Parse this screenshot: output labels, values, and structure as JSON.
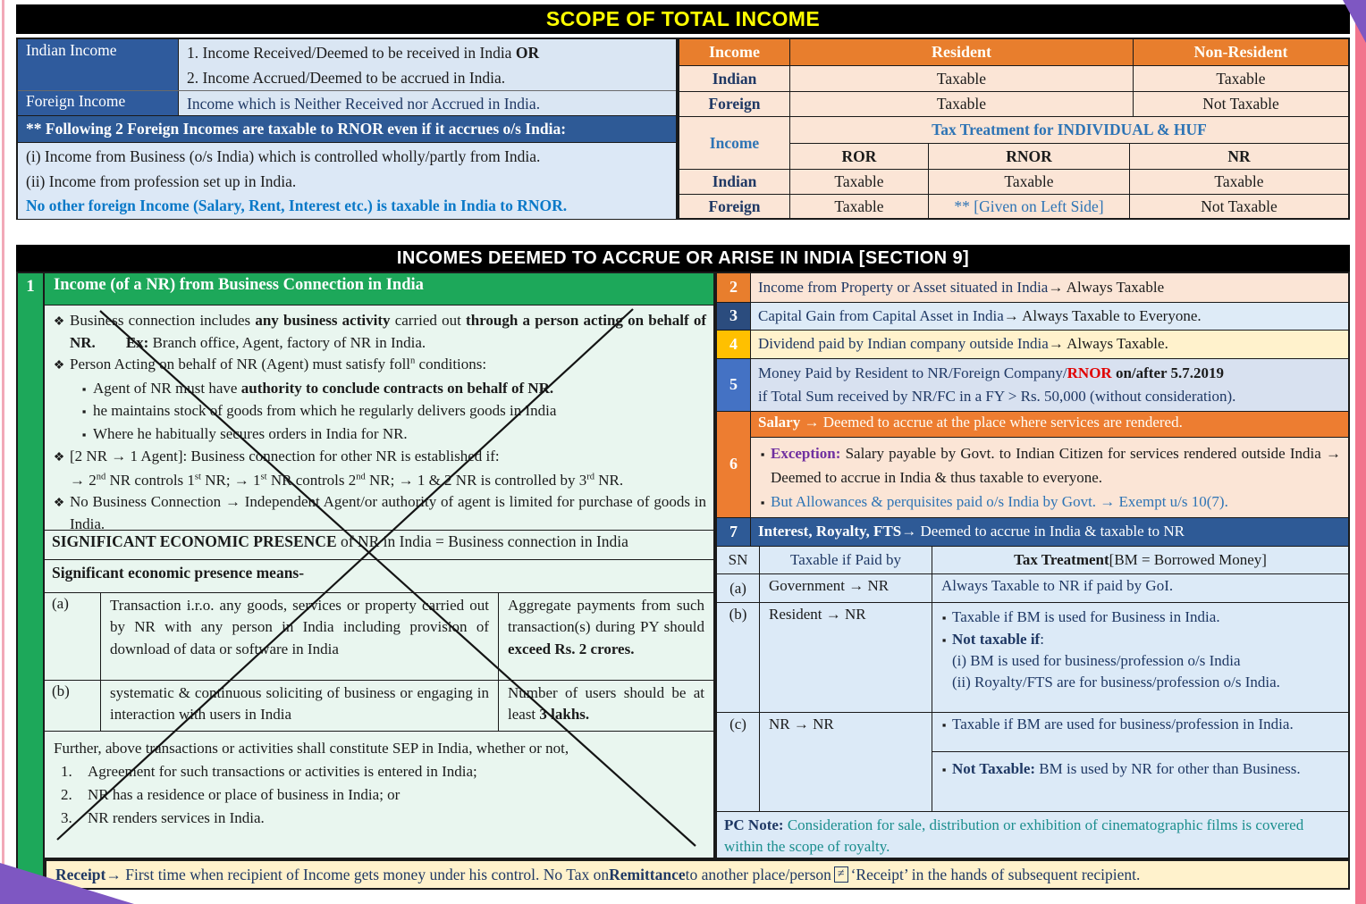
{
  "top": {
    "title": "SCOPE OF TOTAL INCOME",
    "left": {
      "indian_label": "Indian Income",
      "indian_line1": [
        {
          "t": "1. Income Received/Deemed to be received in India "
        },
        {
          "t": "OR",
          "c": "b"
        }
      ],
      "indian_line2": [
        {
          "t": "2. Income Accrued/Deemed to be accrued in India."
        }
      ],
      "foreign_label": "Foreign Income",
      "foreign_desc": [
        {
          "t": "Income which is Neither Received nor Accrued in India.",
          "c": "navy"
        }
      ],
      "note": "** Following 2 Foreign Incomes are taxable to RNOR even if it accrues o/s India:",
      "item1": "(i) Income from Business (o/s India) which is controlled wholly/partly from India.",
      "item2": "(ii) Income from profession set up in India.",
      "highlight": "No other foreign Income (Salary, Rent, Interest etc.) is taxable in India to RNOR."
    },
    "right": {
      "h_income": "Income",
      "h_resident": "Resident",
      "h_nonresident": "Non-Resident",
      "r1": {
        "label": "Indian",
        "res": "Taxable",
        "nr": "Taxable"
      },
      "r2": {
        "label": "Foreign",
        "res": "Taxable",
        "nr": "Not Taxable"
      },
      "income2": "Income",
      "treat_hdr": "Tax Treatment for INDIVIDUAL & HUF",
      "sub": {
        "ror": "ROR",
        "rnor": "RNOR",
        "nr": "NR"
      },
      "r3": {
        "label": "Indian",
        "ror": "Taxable",
        "rnor": "Taxable",
        "nr": "Taxable"
      },
      "r4": {
        "label": "Foreign",
        "ror": "Taxable",
        "rnor": "** [Given on Left Side]",
        "nr": "Not Taxable"
      }
    }
  },
  "sec9": {
    "title": "INCOMES DEEMED TO ACCRUE OR ARISE IN INDIA [SECTION 9]",
    "n1": "1",
    "t1": "Income (of a NR) from Business Connection in India",
    "b1": [
      {
        "t": "Business connection includes "
      },
      {
        "t": "any business activity",
        "c": "b"
      },
      {
        "t": " carried out "
      },
      {
        "t": "through a person acting on behalf of NR.",
        "c": "b"
      },
      {
        "t": "        "
      },
      {
        "t": "Ex:",
        "c": "b"
      },
      {
        "t": " Branch office, Agent, factory of NR in India."
      }
    ],
    "b2": [
      {
        "t": "Person Acting on behalf of NR (Agent) must satisfy foll"
      },
      {
        "t": "n",
        "c": "sup"
      },
      {
        "t": " conditions:"
      }
    ],
    "s1": [
      {
        "t": "Agent of NR must have "
      },
      {
        "t": "authority to conclude contracts on behalf of NR.",
        "c": "b"
      }
    ],
    "s2": [
      {
        "t": "he maintains stock of goods from which he regularly delivers goods in India"
      }
    ],
    "s3": [
      {
        "t": "Where he habitually secures orders in India for NR."
      }
    ],
    "b3a": [
      {
        "t": "[2 NR → 1 Agent]: Business connection for other NR is established if:"
      }
    ],
    "b3b": [
      {
        "t": "→ 2"
      },
      {
        "t": "nd",
        "c": "sup"
      },
      {
        "t": " NR controls 1"
      },
      {
        "t": "st",
        "c": "sup"
      },
      {
        "t": " NR; → 1"
      },
      {
        "t": "st",
        "c": "sup"
      },
      {
        "t": " NR controls 2"
      },
      {
        "t": "nd",
        "c": "sup"
      },
      {
        "t": " NR; → 1 & 2 NR is controlled by 3"
      },
      {
        "t": "rd",
        "c": "sup"
      },
      {
        "t": " NR."
      }
    ],
    "b4": [
      {
        "t": "No Business Connection → Independent Agent/or authority of agent is limited for purchase of goods in India."
      }
    ],
    "sep": [
      {
        "t": "SIGNIFICANT ECONOMIC PRESENCE",
        "c": "b"
      },
      {
        "t": " of NR in India = Business connection in India"
      }
    ],
    "means": [
      {
        "t": "Significant economic presence means-",
        "c": "b"
      }
    ],
    "ga": {
      "label": "(a)",
      "desc": [
        {
          "t": "Transaction i.r.o. any goods, services or property carried out by NR with any person in India including provision of download of data or software in India"
        }
      ],
      "val": [
        {
          "t": "Aggregate payments from such transaction(s) during PY should "
        },
        {
          "t": "exceed Rs. 2 crores.",
          "c": "b"
        }
      ]
    },
    "gb": {
      "label": "(b)",
      "desc": [
        {
          "t": "systematic & continuous soliciting of business or engaging in interaction with users in India"
        }
      ],
      "val": [
        {
          "t": "Number of users should be at least "
        },
        {
          "t": "3 lakhs.",
          "c": "b"
        }
      ]
    },
    "footer": {
      "p": "Further, above transactions or activities shall constitute SEP in India, whether or not,",
      "items": [
        {
          "n": "1.",
          "t": "Agreement for such transactions or activities is entered in India;"
        },
        {
          "n": "2.",
          "t": "NR has a residence or place of business in India; or"
        },
        {
          "n": "3.",
          "t": "NR renders services in India."
        }
      ]
    },
    "r2": {
      "n": "2",
      "segs": [
        {
          "t": "Income from Property or Asset situated in India ",
          "c": "navy"
        },
        {
          "t": "→ Always Taxable"
        }
      ]
    },
    "r3": {
      "n": "3",
      "segs": [
        {
          "t": "Capital Gain from Capital Asset in India ",
          "c": "navy"
        },
        {
          "t": "→ Always Taxable to Everyone."
        }
      ]
    },
    "r4": {
      "n": "4",
      "segs": [
        {
          "t": "Dividend paid by Indian company outside India ",
          "c": "navy"
        },
        {
          "t": "→ Always Taxable."
        }
      ]
    },
    "r5": {
      "n": "5",
      "l1": [
        {
          "t": "Money Paid by Resident to NR/Foreign Company/",
          "c": "navy"
        },
        {
          "t": "RNOR",
          "c": "red"
        },
        {
          "t": " on/after 5.7.2019",
          "c": "b"
        }
      ],
      "l2": [
        {
          "t": "if Total Sum received by NR/FC in a FY > Rs. 50,000 (without consideration).",
          "c": "navy"
        }
      ]
    },
    "r6": {
      "n": "6",
      "hdr": [
        {
          "t": "Salary",
          "c": "b"
        },
        {
          "t": " → Deemed to accrue at the place where services are rendered."
        }
      ],
      "b1": [
        {
          "t": "Exception:",
          "c": "purple"
        },
        {
          "t": " Salary payable by Govt. to Indian Citizen for services rendered outside India → Deemed to accrue in India & thus taxable to everyone."
        }
      ],
      "b2": [
        {
          "t": "But Allowances & perquisites paid o/s India by Govt. → Exempt u/s 10(7).",
          "c": "blue"
        }
      ]
    },
    "r7": {
      "n": "7",
      "segs": [
        {
          "t": "Interest, Royalty, FTS",
          "c": "b"
        },
        {
          "t": " → Deemed to accrue in India & taxable to NR"
        }
      ]
    },
    "sn": {
      "h_sn": "SN",
      "h_paid": [
        {
          "t": "Taxable if Paid by",
          "c": "navy"
        }
      ],
      "h_treat": [
        {
          "t": "Tax Treatment",
          "c": "b"
        },
        {
          "t": " [BM = Borrowed Money]"
        }
      ],
      "a": {
        "label": "(a)",
        "paid": "Government → NR",
        "treat": [
          {
            "t": "Always Taxable to NR if paid by GoI.",
            "c": "navy"
          }
        ]
      },
      "b": {
        "label": "(b)",
        "paid": "Resident → NR",
        "t1": [
          {
            "t": "Taxable if BM is used for Business in India.",
            "c": "navy"
          }
        ],
        "t2": [
          {
            "t": "Not taxable if",
            "c": "navy b"
          },
          {
            "t": ":",
            "c": "navy"
          }
        ],
        "t2i": [
          {
            "t": "(i) BM is used for business/profession o/s India",
            "c": "navy"
          }
        ],
        "t2ii": [
          {
            "t": "(ii) Royalty/FTS are for business/profession o/s India.",
            "c": "navy"
          }
        ]
      },
      "c": {
        "label": "(c)",
        "paid": "NR → NR",
        "t1": [
          {
            "t": "Taxable if BM are used for business/profession in India.",
            "c": "navy"
          }
        ],
        "t2": [
          {
            "t": "Not Taxable:",
            "c": "navy b"
          },
          {
            "t": " BM is used by NR for other than Business.",
            "c": "navy"
          }
        ]
      }
    },
    "pc": [
      {
        "t": "PC Note:",
        "c": "navy b"
      },
      {
        "t": " Consideration for sale, distribution or exhibition of cinematographic films is covered within the scope of royalty.",
        "c": "teal"
      }
    ],
    "receipt": [
      {
        "t": "Receipt",
        "c": "navy b"
      },
      {
        "t": " → First time when recipient of Income gets money under his control. No Tax on ",
        "c": "navy"
      },
      {
        "t": "Remittance",
        "c": "navy b"
      },
      {
        "t": " to another place/person",
        "c": "navy"
      },
      {
        "t": "≠",
        "c": "neq"
      },
      {
        "t": "‘Receipt’ in the hands of subsequent recipient.",
        "c": "navy"
      }
    ]
  }
}
